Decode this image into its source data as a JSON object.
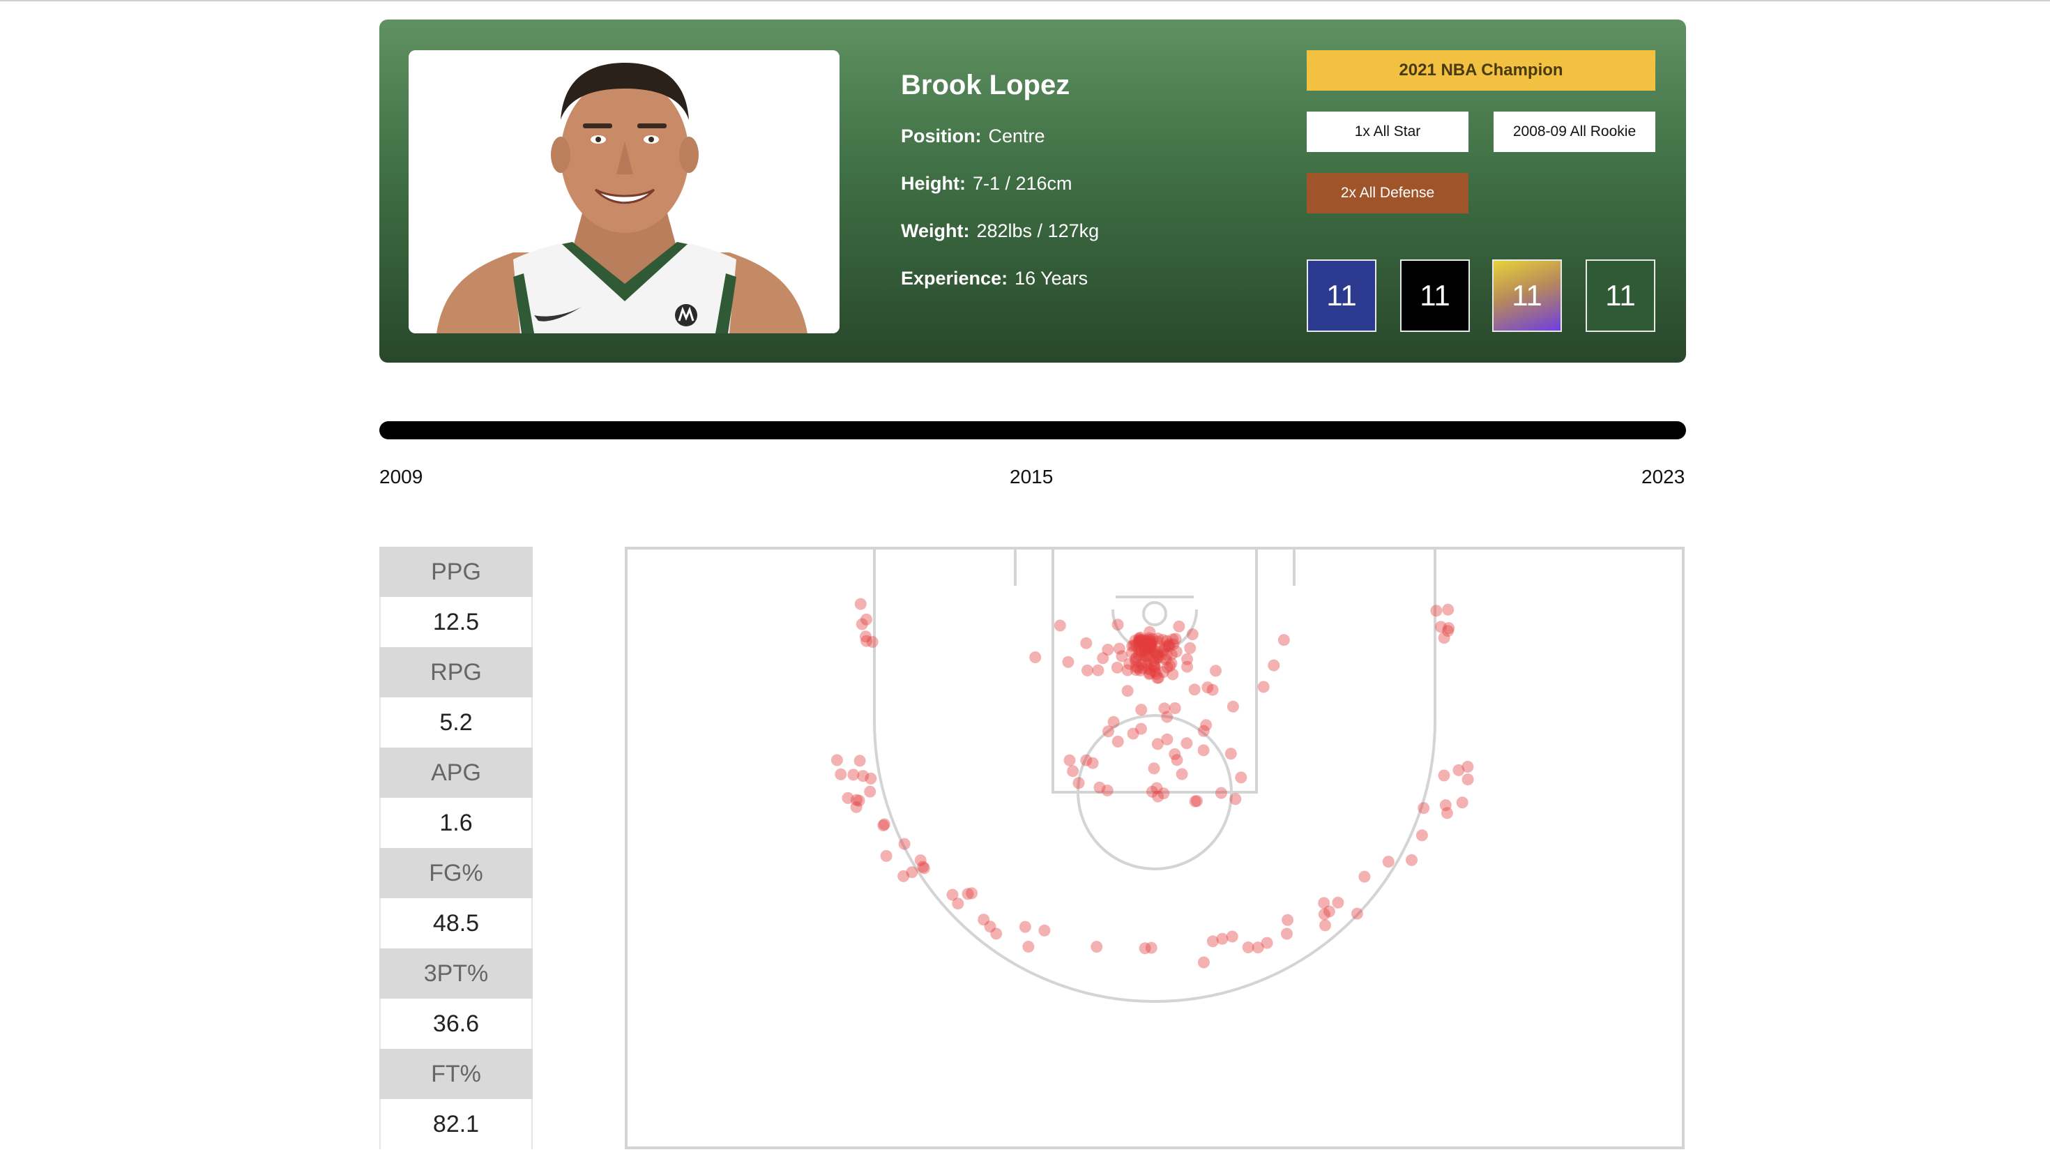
{
  "player": {
    "name": "Brook Lopez",
    "position_label": "Position:",
    "position": "Centre",
    "height_label": "Height:",
    "height": "7-1 / 216cm",
    "weight_label": "Weight:",
    "weight": "282lbs / 127kg",
    "experience_label": "Experience:",
    "experience": "16 Years"
  },
  "badges": {
    "champion": "2021 NBA Champion",
    "all_star": "1x All Star",
    "all_rookie": "2008-09 All Rookie",
    "all_defense": "2x All Defense"
  },
  "jerseys": [
    {
      "number": "11",
      "color": "#2b3a8f"
    },
    {
      "number": "11",
      "color": "#000000"
    },
    {
      "number": "11",
      "color": "gradient-yellow-purple"
    },
    {
      "number": "11",
      "color": "#2f5a35"
    }
  ],
  "colors": {
    "card_top": "#5f9162",
    "card_bottom": "#28472b",
    "champion_badge": "#f2c141",
    "defense_badge": "#a0542a",
    "shot_marker": "#e33b3b"
  },
  "timeline": {
    "start": "2009",
    "middle": "2015",
    "end": "2023"
  },
  "stats": [
    {
      "label": "PPG",
      "value": "12.5"
    },
    {
      "label": "RPG",
      "value": "5.2"
    },
    {
      "label": "APG",
      "value": "1.6"
    },
    {
      "label": "FG%",
      "value": "48.5"
    },
    {
      "label": "3PT%",
      "value": "36.6"
    },
    {
      "label": "FT%",
      "value": "82.1"
    }
  ]
}
